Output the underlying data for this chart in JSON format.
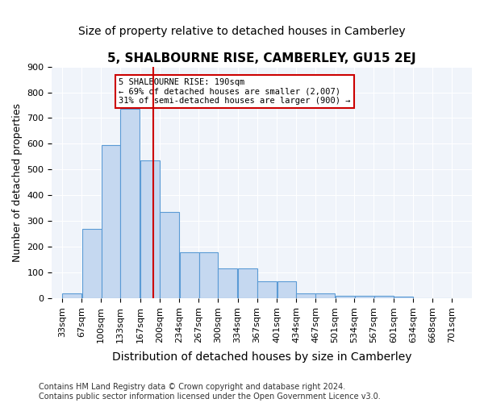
{
  "title": "5, SHALBOURNE RISE, CAMBERLEY, GU15 2EJ",
  "subtitle": "Size of property relative to detached houses in Camberley",
  "xlabel": "Distribution of detached houses by size in Camberley",
  "ylabel": "Number of detached properties",
  "categories": [
    "33sqm",
    "67sqm",
    "100sqm",
    "133sqm",
    "167sqm",
    "200sqm",
    "234sqm",
    "267sqm",
    "300sqm",
    "334sqm",
    "367sqm",
    "401sqm",
    "434sqm",
    "467sqm",
    "501sqm",
    "534sqm",
    "567sqm",
    "601sqm",
    "634sqm",
    "668sqm",
    "701sqm"
  ],
  "bin_edges": [
    33,
    67,
    100,
    133,
    167,
    200,
    234,
    267,
    300,
    334,
    367,
    401,
    434,
    467,
    501,
    534,
    567,
    601,
    634,
    668,
    701
  ],
  "bar_heights": [
    20,
    270,
    595,
    735,
    535,
    335,
    180,
    180,
    115,
    115,
    65,
    65,
    20,
    20,
    10,
    10,
    10,
    8,
    2,
    2
  ],
  "bar_color": "#c5d8f0",
  "bar_edge_color": "#5b9bd5",
  "vline_x": 190,
  "vline_color": "#cc0000",
  "annotation_text": "5 SHALBOURNE RISE: 190sqm\n← 69% of detached houses are smaller (2,007)\n31% of semi-detached houses are larger (900) →",
  "annotation_box_color": "white",
  "annotation_box_edge": "#cc0000",
  "ylim": [
    0,
    900
  ],
  "yticks": [
    0,
    100,
    200,
    300,
    400,
    500,
    600,
    700,
    800,
    900
  ],
  "footer": "Contains HM Land Registry data © Crown copyright and database right 2024.\nContains public sector information licensed under the Open Government Licence v3.0.",
  "bg_color": "#f0f4fa",
  "title_fontsize": 11,
  "subtitle_fontsize": 10,
  "xlabel_fontsize": 10,
  "ylabel_fontsize": 9,
  "tick_fontsize": 8,
  "footer_fontsize": 7
}
